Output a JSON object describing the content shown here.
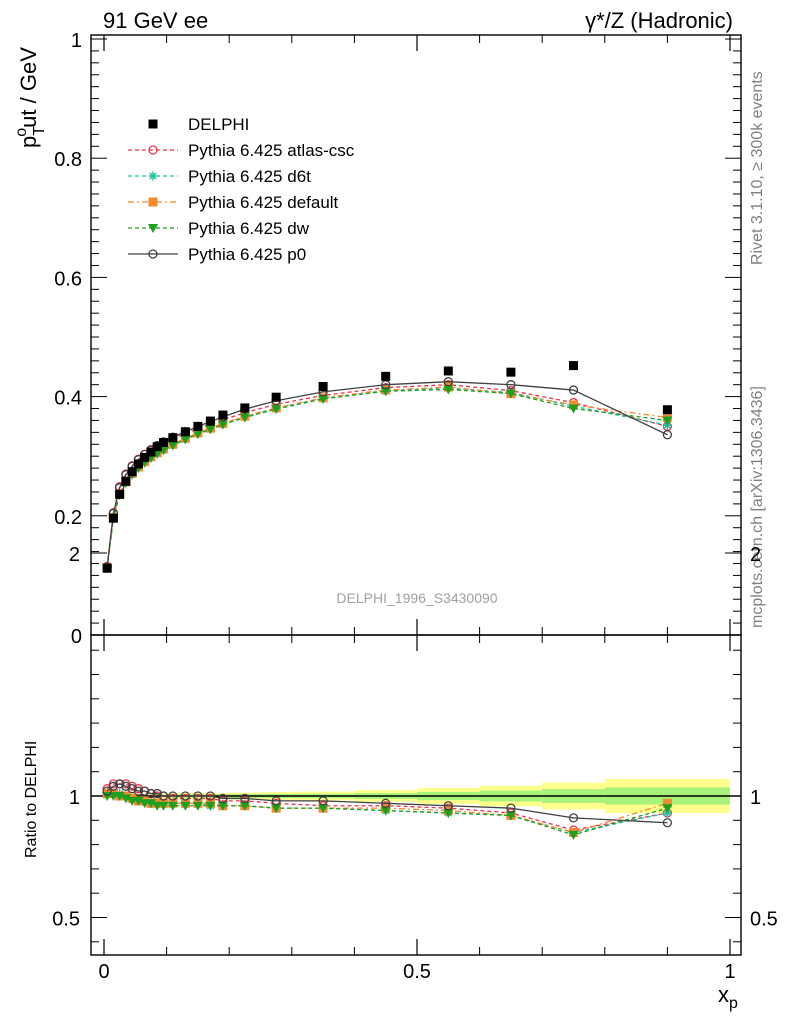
{
  "header": {
    "left": "91 GeV ee",
    "right": "γ*/Z (Hadronic)"
  },
  "side_labels": {
    "rivet": "Rivet 3.1.10, ≥ 300k events",
    "site": "mcplots.cern.ch [arXiv:1306.3436]"
  },
  "watermark": "DELPHI_1996_S3430090",
  "chart_data": [
    {
      "type": "line",
      "panel": "main",
      "ylabel": "p_T^out / GeV",
      "xlim": [
        0,
        1
      ],
      "ylim": [
        0,
        1
      ],
      "yticks": [
        "0",
        "0.2",
        "0.4",
        "0.6",
        "0.8",
        "1"
      ],
      "legend": "top-left",
      "x": [
        0.005,
        0.015,
        0.025,
        0.035,
        0.045,
        0.055,
        0.065,
        0.075,
        0.085,
        0.095,
        0.11,
        0.13,
        0.15,
        0.17,
        0.19,
        0.225,
        0.275,
        0.35,
        0.45,
        0.55,
        0.65,
        0.75,
        0.9
      ],
      "series": [
        {
          "name": "DELPHI",
          "color": "#000000",
          "marker": "square",
          "values": [
            0.112,
            0.196,
            0.236,
            0.258,
            0.274,
            0.287,
            0.298,
            0.307,
            0.316,
            0.323,
            0.331,
            0.341,
            0.35,
            0.359,
            0.369,
            0.381,
            0.399,
            0.417,
            0.434,
            0.443,
            0.441,
            0.452,
            0.378
          ]
        },
        {
          "name": "Pythia 6.425 atlas-csc",
          "color": "#e8344b",
          "marker": "open-circle",
          "dash": "4,3",
          "values": [
            0.115,
            0.205,
            0.249,
            0.27,
            0.284,
            0.295,
            0.303,
            0.31,
            0.316,
            0.322,
            0.329,
            0.338,
            0.346,
            0.354,
            0.361,
            0.373,
            0.387,
            0.402,
            0.415,
            0.42,
            0.41,
            0.39,
            0.35
          ]
        },
        {
          "name": "Pythia 6.425 d6t",
          "color": "#1fbf9a",
          "marker": "star",
          "dash": "4,3",
          "values": [
            0.113,
            0.198,
            0.238,
            0.258,
            0.272,
            0.282,
            0.291,
            0.299,
            0.306,
            0.312,
            0.32,
            0.33,
            0.338,
            0.346,
            0.354,
            0.366,
            0.381,
            0.397,
            0.41,
            0.414,
            0.407,
            0.384,
            0.352
          ]
        },
        {
          "name": "Pythia 6.425 default",
          "color": "#f58a2f",
          "marker": "square",
          "dash": "6,3,2,3",
          "values": [
            0.113,
            0.197,
            0.237,
            0.257,
            0.271,
            0.282,
            0.291,
            0.299,
            0.306,
            0.312,
            0.32,
            0.33,
            0.339,
            0.347,
            0.355,
            0.367,
            0.381,
            0.398,
            0.411,
            0.416,
            0.405,
            0.386,
            0.365
          ]
        },
        {
          "name": "Pythia 6.425 dw",
          "color": "#1f9f1f",
          "marker": "triangle-down",
          "dash": "4,3",
          "values": [
            0.112,
            0.196,
            0.235,
            0.255,
            0.269,
            0.28,
            0.289,
            0.297,
            0.304,
            0.31,
            0.318,
            0.328,
            0.337,
            0.345,
            0.353,
            0.365,
            0.379,
            0.396,
            0.409,
            0.412,
            0.405,
            0.38,
            0.36
          ]
        },
        {
          "name": "Pythia 6.425 p0",
          "color": "#404040",
          "marker": "open-circle",
          "dash": "",
          "values": [
            0.114,
            0.204,
            0.247,
            0.269,
            0.283,
            0.294,
            0.303,
            0.311,
            0.318,
            0.324,
            0.332,
            0.341,
            0.35,
            0.358,
            0.366,
            0.379,
            0.393,
            0.408,
            0.42,
            0.425,
            0.42,
            0.411,
            0.336
          ]
        }
      ]
    },
    {
      "type": "line",
      "panel": "ratio",
      "xlabel": "x_p",
      "ylabel": "Ratio to DELPHI",
      "xlim": [
        0,
        1
      ],
      "ylim": [
        0.35,
        2.35
      ],
      "yticks": [
        "0.5",
        "1",
        "2"
      ],
      "xticks": [
        "0",
        "0.5",
        "1"
      ],
      "band": {
        "x_edges": [
          0.0,
          0.1,
          0.2,
          0.25,
          0.3,
          0.4,
          0.5,
          0.6,
          0.7,
          0.8,
          1.0
        ],
        "inner": [
          0.006,
          0.007,
          0.008,
          0.008,
          0.009,
          0.012,
          0.017,
          0.022,
          0.028,
          0.035
        ],
        "outer": [
          0.01,
          0.012,
          0.014,
          0.016,
          0.018,
          0.024,
          0.033,
          0.042,
          0.055,
          0.07
        ]
      },
      "x": [
        0.005,
        0.015,
        0.025,
        0.035,
        0.045,
        0.055,
        0.065,
        0.075,
        0.085,
        0.095,
        0.11,
        0.13,
        0.15,
        0.17,
        0.19,
        0.225,
        0.275,
        0.35,
        0.45,
        0.55,
        0.65,
        0.75,
        0.9
      ],
      "series": [
        {
          "name": "Pythia 6.425 atlas-csc",
          "color": "#e8344b",
          "marker": "open-circle",
          "dash": "4,3",
          "values": [
            1.03,
            1.05,
            1.05,
            1.05,
            1.04,
            1.03,
            1.02,
            1.01,
            1.0,
            1.0,
            0.99,
            0.99,
            0.99,
            0.99,
            0.98,
            0.98,
            0.97,
            0.96,
            0.96,
            0.95,
            0.93,
            0.86,
            0.93
          ]
        },
        {
          "name": "Pythia 6.425 d6t",
          "color": "#1fbf9a",
          "marker": "star",
          "dash": "4,3",
          "values": [
            1.01,
            1.01,
            1.01,
            1.0,
            0.99,
            0.98,
            0.98,
            0.97,
            0.97,
            0.97,
            0.97,
            0.97,
            0.97,
            0.96,
            0.96,
            0.96,
            0.95,
            0.95,
            0.94,
            0.93,
            0.92,
            0.85,
            0.93
          ]
        },
        {
          "name": "Pythia 6.425 default",
          "color": "#f58a2f",
          "marker": "square",
          "dash": "6,3,2,3",
          "values": [
            1.01,
            1.01,
            1.0,
            1.0,
            0.99,
            0.98,
            0.98,
            0.97,
            0.97,
            0.97,
            0.97,
            0.97,
            0.97,
            0.97,
            0.96,
            0.96,
            0.95,
            0.95,
            0.95,
            0.94,
            0.92,
            0.85,
            0.97
          ]
        },
        {
          "name": "Pythia 6.425 dw",
          "color": "#1f9f1f",
          "marker": "triangle-down",
          "dash": "4,3",
          "values": [
            1.0,
            1.0,
            1.0,
            0.99,
            0.98,
            0.98,
            0.97,
            0.97,
            0.96,
            0.96,
            0.96,
            0.96,
            0.96,
            0.96,
            0.96,
            0.96,
            0.95,
            0.95,
            0.94,
            0.93,
            0.92,
            0.84,
            0.95
          ]
        },
        {
          "name": "Pythia 6.425 p0",
          "color": "#404040",
          "marker": "open-circle",
          "dash": "",
          "values": [
            1.02,
            1.04,
            1.05,
            1.04,
            1.03,
            1.02,
            1.02,
            1.01,
            1.01,
            1.0,
            1.0,
            1.0,
            1.0,
            1.0,
            0.99,
            0.99,
            0.98,
            0.98,
            0.97,
            0.96,
            0.95,
            0.91,
            0.89
          ]
        }
      ]
    }
  ]
}
